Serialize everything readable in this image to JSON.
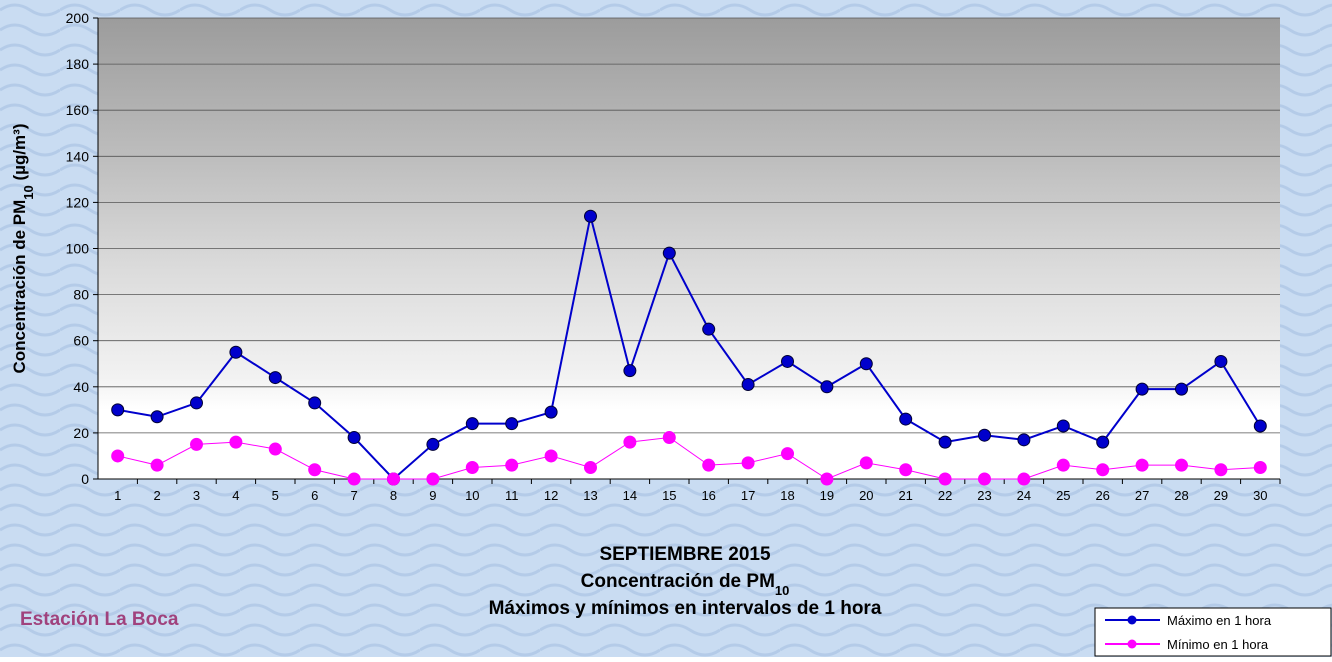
{
  "chart_data": {
    "type": "line",
    "title_lines": [
      [
        "SEPTIEMBRE 2015"
      ],
      [
        "Concentración de PM",
        "10"
      ],
      [
        "Máximos y mínimos en intervalos de 1 hora"
      ]
    ],
    "ylabel": [
      "Concentración de PM",
      "10",
      " (µg/m³)"
    ],
    "station": "Estación La Boca",
    "categories": [
      "1",
      "2",
      "3",
      "4",
      "5",
      "6",
      "7",
      "8",
      "9",
      "10",
      "11",
      "12",
      "13",
      "14",
      "15",
      "16",
      "17",
      "18",
      "19",
      "20",
      "21",
      "22",
      "23",
      "24",
      "25",
      "26",
      "27",
      "28",
      "29",
      "30"
    ],
    "series": [
      {
        "name": "Máximo en 1 hora",
        "color": "#0000cc",
        "values": [
          30,
          27,
          33,
          55,
          44,
          33,
          18,
          0,
          15,
          24,
          24,
          29,
          114,
          47,
          98,
          65,
          41,
          51,
          40,
          50,
          26,
          16,
          19,
          17,
          23,
          16,
          39,
          39,
          51,
          23
        ]
      },
      {
        "name": "Mínimo en 1 hora",
        "color": "#ff00ff",
        "values": [
          10,
          6,
          15,
          16,
          13,
          4,
          0,
          0,
          0,
          5,
          6,
          10,
          5,
          16,
          18,
          6,
          7,
          11,
          0,
          7,
          4,
          0,
          0,
          0,
          6,
          4,
          6,
          6,
          4,
          5
        ]
      }
    ],
    "ylim": [
      0,
      200
    ],
    "yticks": [
      0,
      20,
      40,
      60,
      80,
      100,
      120,
      140,
      160,
      180,
      200
    ],
    "grid": true,
    "legend": "bottom-right"
  }
}
